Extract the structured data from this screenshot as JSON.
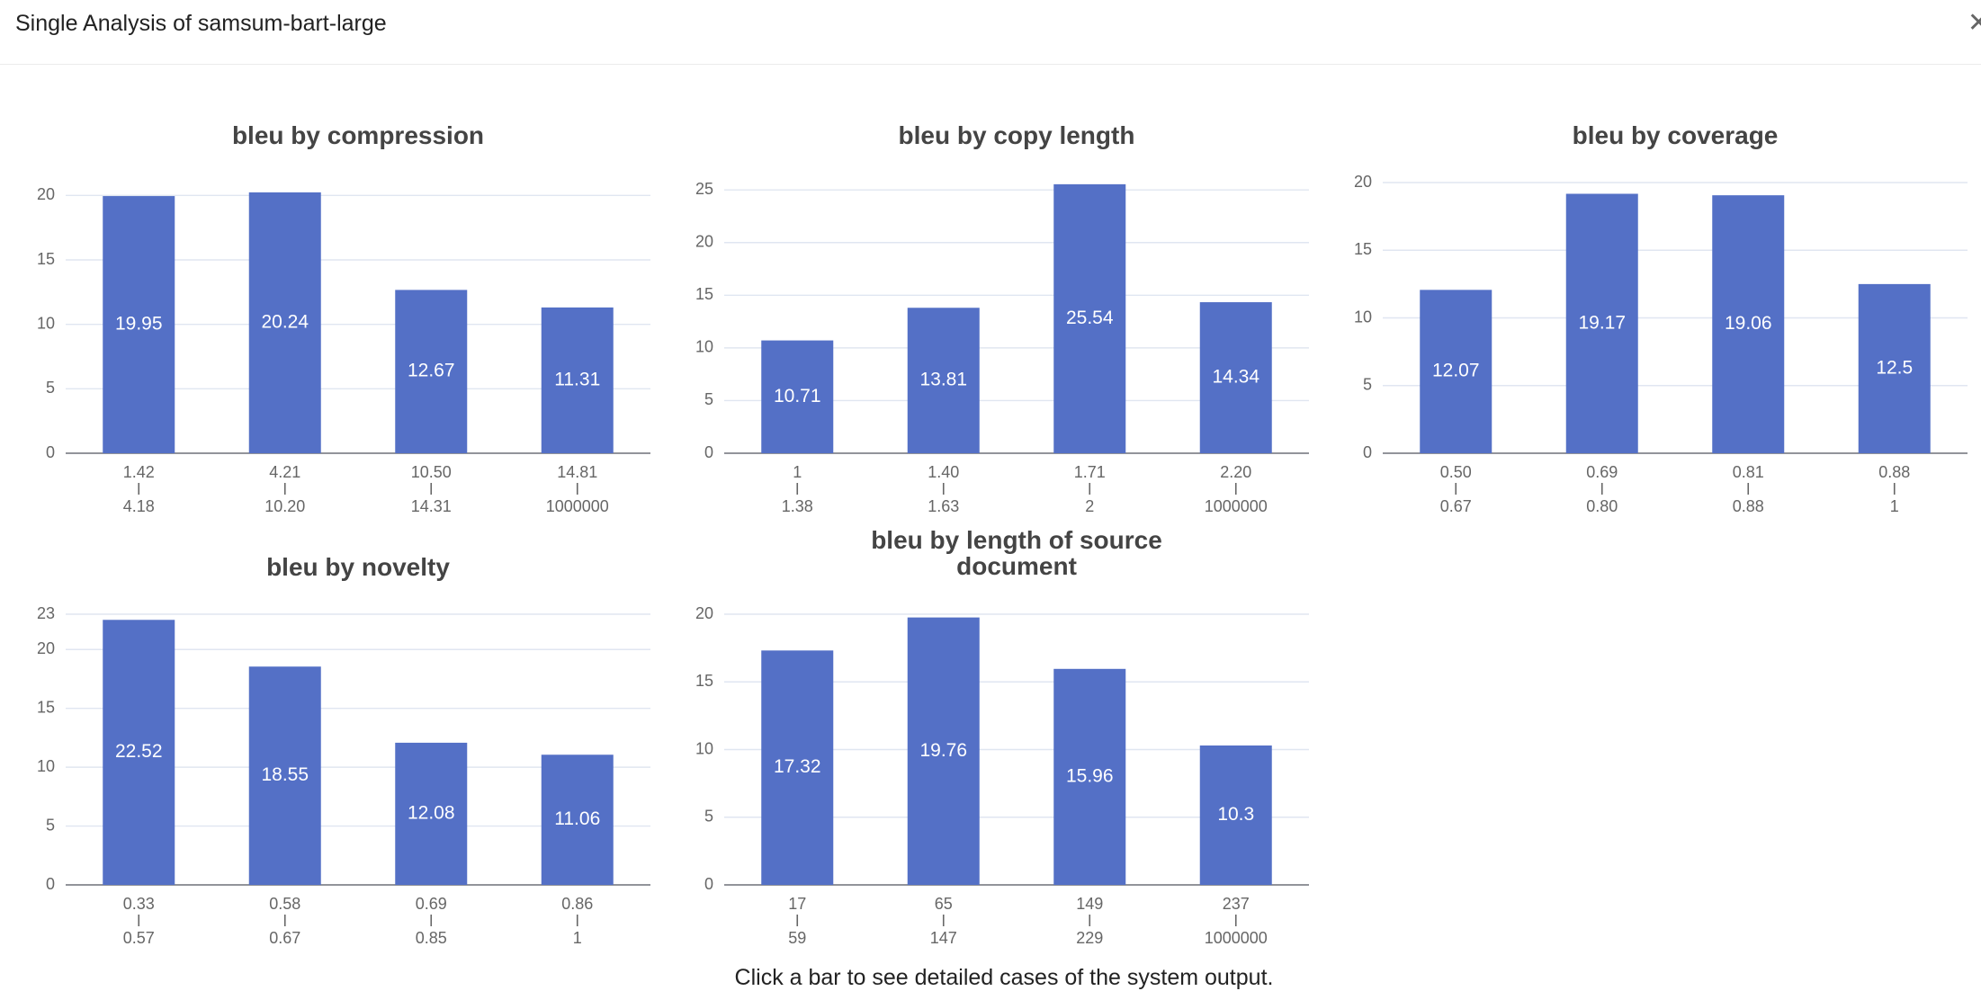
{
  "header": {
    "title": "Single Analysis of samsum-bart-large"
  },
  "footer": {
    "hint": "Click a bar to see detailed cases of the system output."
  },
  "colors": {
    "bar": "#5470c6",
    "grid": "#e0e6f1"
  },
  "chart_data": [
    {
      "type": "bar",
      "title": [
        "bleu by compression"
      ],
      "categories": [
        [
          "1.42",
          "4.18"
        ],
        [
          "4.21",
          "10.20"
        ],
        [
          "10.50",
          "14.31"
        ],
        [
          "14.81",
          "1000000"
        ]
      ],
      "values": [
        19.95,
        20.24,
        12.67,
        11.31
      ],
      "yticks": [
        0,
        5,
        10,
        15,
        20
      ],
      "ylim": [
        0,
        21
      ],
      "grid": true
    },
    {
      "type": "bar",
      "title": [
        "bleu by copy length"
      ],
      "categories": [
        [
          "1",
          "1.38"
        ],
        [
          "1.40",
          "1.63"
        ],
        [
          "1.71",
          "2"
        ],
        [
          "2.20",
          "1000000"
        ]
      ],
      "values": [
        10.71,
        13.81,
        25.54,
        14.34
      ],
      "yticks": [
        0,
        5,
        10,
        15,
        20,
        25
      ],
      "ylim": [
        0,
        25.7
      ],
      "grid": true
    },
    {
      "type": "bar",
      "title": [
        "bleu by coverage"
      ],
      "categories": [
        [
          "0.50",
          "0.67"
        ],
        [
          "0.69",
          "0.80"
        ],
        [
          "0.81",
          "0.88"
        ],
        [
          "0.88",
          "1"
        ]
      ],
      "values": [
        12.07,
        19.17,
        19.06,
        12.5
      ],
      "yticks": [
        0,
        5,
        10,
        15,
        20
      ],
      "ylim": [
        0,
        20
      ],
      "grid": true
    },
    {
      "type": "bar",
      "title": [
        "bleu by novelty"
      ],
      "categories": [
        [
          "0.33",
          "0.57"
        ],
        [
          "0.58",
          "0.67"
        ],
        [
          "0.69",
          "0.85"
        ],
        [
          "0.86",
          "1"
        ]
      ],
      "values": [
        22.52,
        18.55,
        12.08,
        11.06
      ],
      "yticks": [
        0,
        5,
        10,
        15,
        20,
        23
      ],
      "ylim": [
        0,
        23
      ],
      "grid": true
    },
    {
      "type": "bar",
      "title": [
        "bleu by length of source",
        "document"
      ],
      "categories": [
        [
          "17",
          "59"
        ],
        [
          "65",
          "147"
        ],
        [
          "149",
          "229"
        ],
        [
          "237",
          "1000000"
        ]
      ],
      "values": [
        17.32,
        19.76,
        15.96,
        10.3
      ],
      "yticks": [
        0,
        5,
        10,
        15,
        20
      ],
      "ylim": [
        0,
        20
      ],
      "grid": true
    }
  ]
}
